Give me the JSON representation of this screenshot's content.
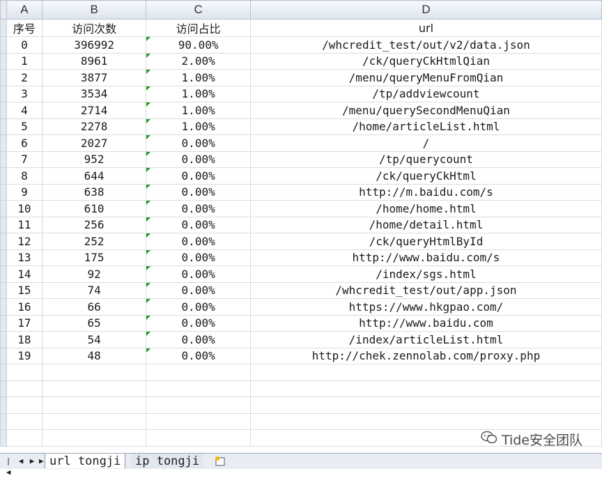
{
  "columns": [
    "A",
    "B",
    "C",
    "D"
  ],
  "table": {
    "headers": [
      "序号",
      "访问次数",
      "访问占比",
      "url"
    ],
    "rows": [
      [
        "0",
        "396992",
        "90.00%",
        "/whcredit_test/out/v2/data.json"
      ],
      [
        "1",
        "8961",
        "2.00%",
        "/ck/queryCkHtmlQian"
      ],
      [
        "2",
        "3877",
        "1.00%",
        "/menu/queryMenuFromQian"
      ],
      [
        "3",
        "3534",
        "1.00%",
        "/tp/addviewcount"
      ],
      [
        "4",
        "2714",
        "1.00%",
        "/menu/querySecondMenuQian"
      ],
      [
        "5",
        "2278",
        "1.00%",
        "/home/articleList.html"
      ],
      [
        "6",
        "2027",
        "0.00%",
        "/"
      ],
      [
        "7",
        "952",
        "0.00%",
        "/tp/querycount"
      ],
      [
        "8",
        "644",
        "0.00%",
        "/ck/queryCkHtml"
      ],
      [
        "9",
        "638",
        "0.00%",
        "http://m.baidu.com/s"
      ],
      [
        "10",
        "610",
        "0.00%",
        "/home/home.html"
      ],
      [
        "11",
        "256",
        "0.00%",
        "/home/detail.html"
      ],
      [
        "12",
        "252",
        "0.00%",
        "/ck/queryHtmlById"
      ],
      [
        "13",
        "175",
        "0.00%",
        "http://www.baidu.com/s"
      ],
      [
        "14",
        "92",
        "0.00%",
        "/index/sgs.html"
      ],
      [
        "15",
        "74",
        "0.00%",
        "/whcredit_test/out/app.json"
      ],
      [
        "16",
        "66",
        "0.00%",
        "https://www.hkgpao.com/"
      ],
      [
        "17",
        "65",
        "0.00%",
        "http://www.baidu.com"
      ],
      [
        "18",
        "54",
        "0.00%",
        "/index/articleList.html"
      ],
      [
        "19",
        "48",
        "0.00%",
        "http://chek.zennolab.com/proxy.php"
      ]
    ]
  },
  "sheet_tabs": {
    "first": "url tongji",
    "second": "ip tongji"
  },
  "watermark": "Tide安全团队",
  "icons": {
    "nav": [
      "first-sheet-icon",
      "prev-sheet-icon",
      "next-sheet-icon",
      "last-sheet-icon"
    ],
    "new_sheet": "insert-sheet-icon",
    "watermark": "wechat-icon"
  },
  "colors": {
    "header_bg": "#dde4ee",
    "indicator": "#1f9d1f",
    "gridline": "#dadcdd"
  }
}
